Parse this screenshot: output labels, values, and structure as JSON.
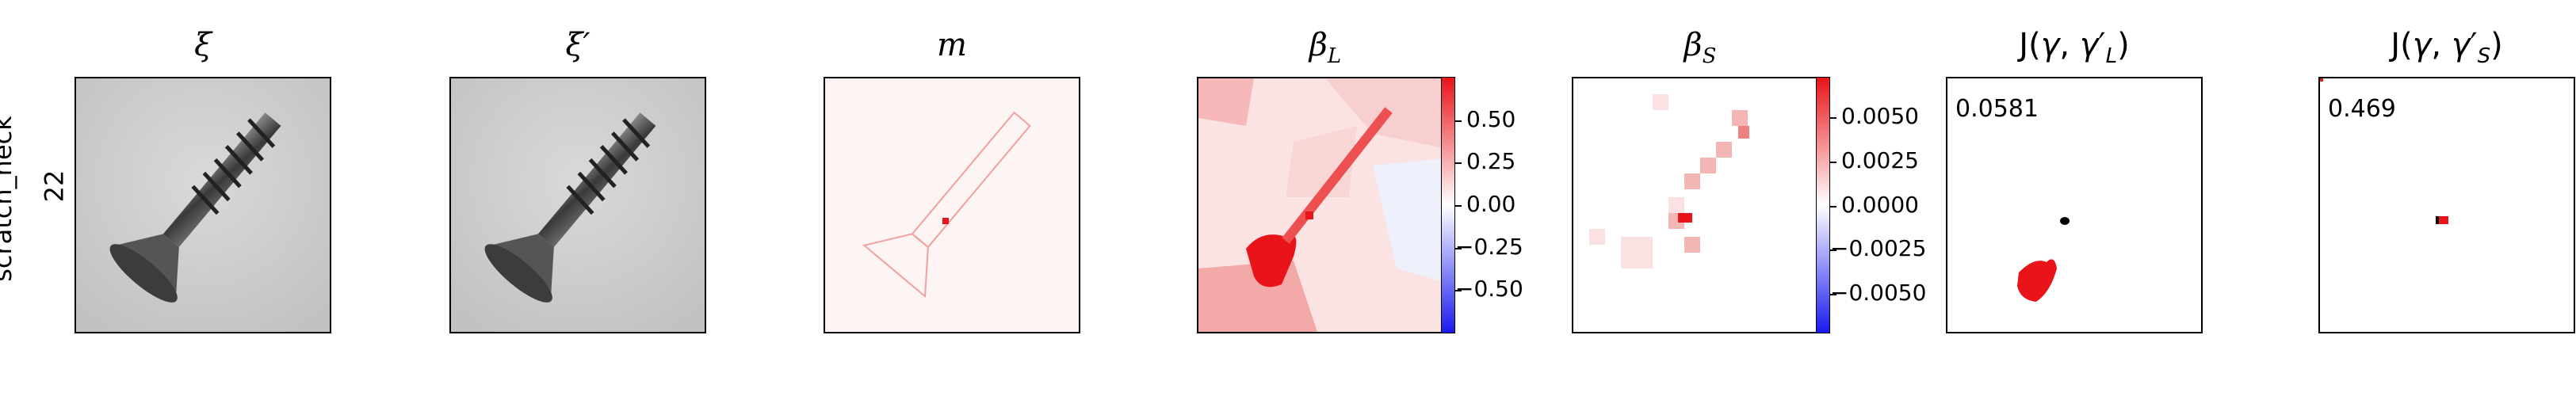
{
  "row": {
    "label_line1": "scratch_neck",
    "label_line2": "22"
  },
  "panels": [
    {
      "title": "ξ"
    },
    {
      "title": "ξ′"
    },
    {
      "title": "m"
    },
    {
      "title": "β_L"
    },
    {
      "title": "β_S"
    },
    {
      "title": "J(γ, γ′_L)"
    },
    {
      "title": "J(γ, γ′_S)"
    }
  ],
  "colorbar_L": {
    "ticks": [
      "0.50",
      "0.25",
      "0.00",
      "−0.25",
      "−0.50"
    ]
  },
  "colorbar_S": {
    "ticks": [
      "0.0050",
      "0.0025",
      "0.0000",
      "−0.0025",
      "−0.0050"
    ]
  },
  "scores": {
    "L": "0.0581",
    "S": "0.469"
  },
  "colors": {
    "positive": "#e8141a",
    "negative": "#1a1aee",
    "neutral": "#ffffff"
  }
}
